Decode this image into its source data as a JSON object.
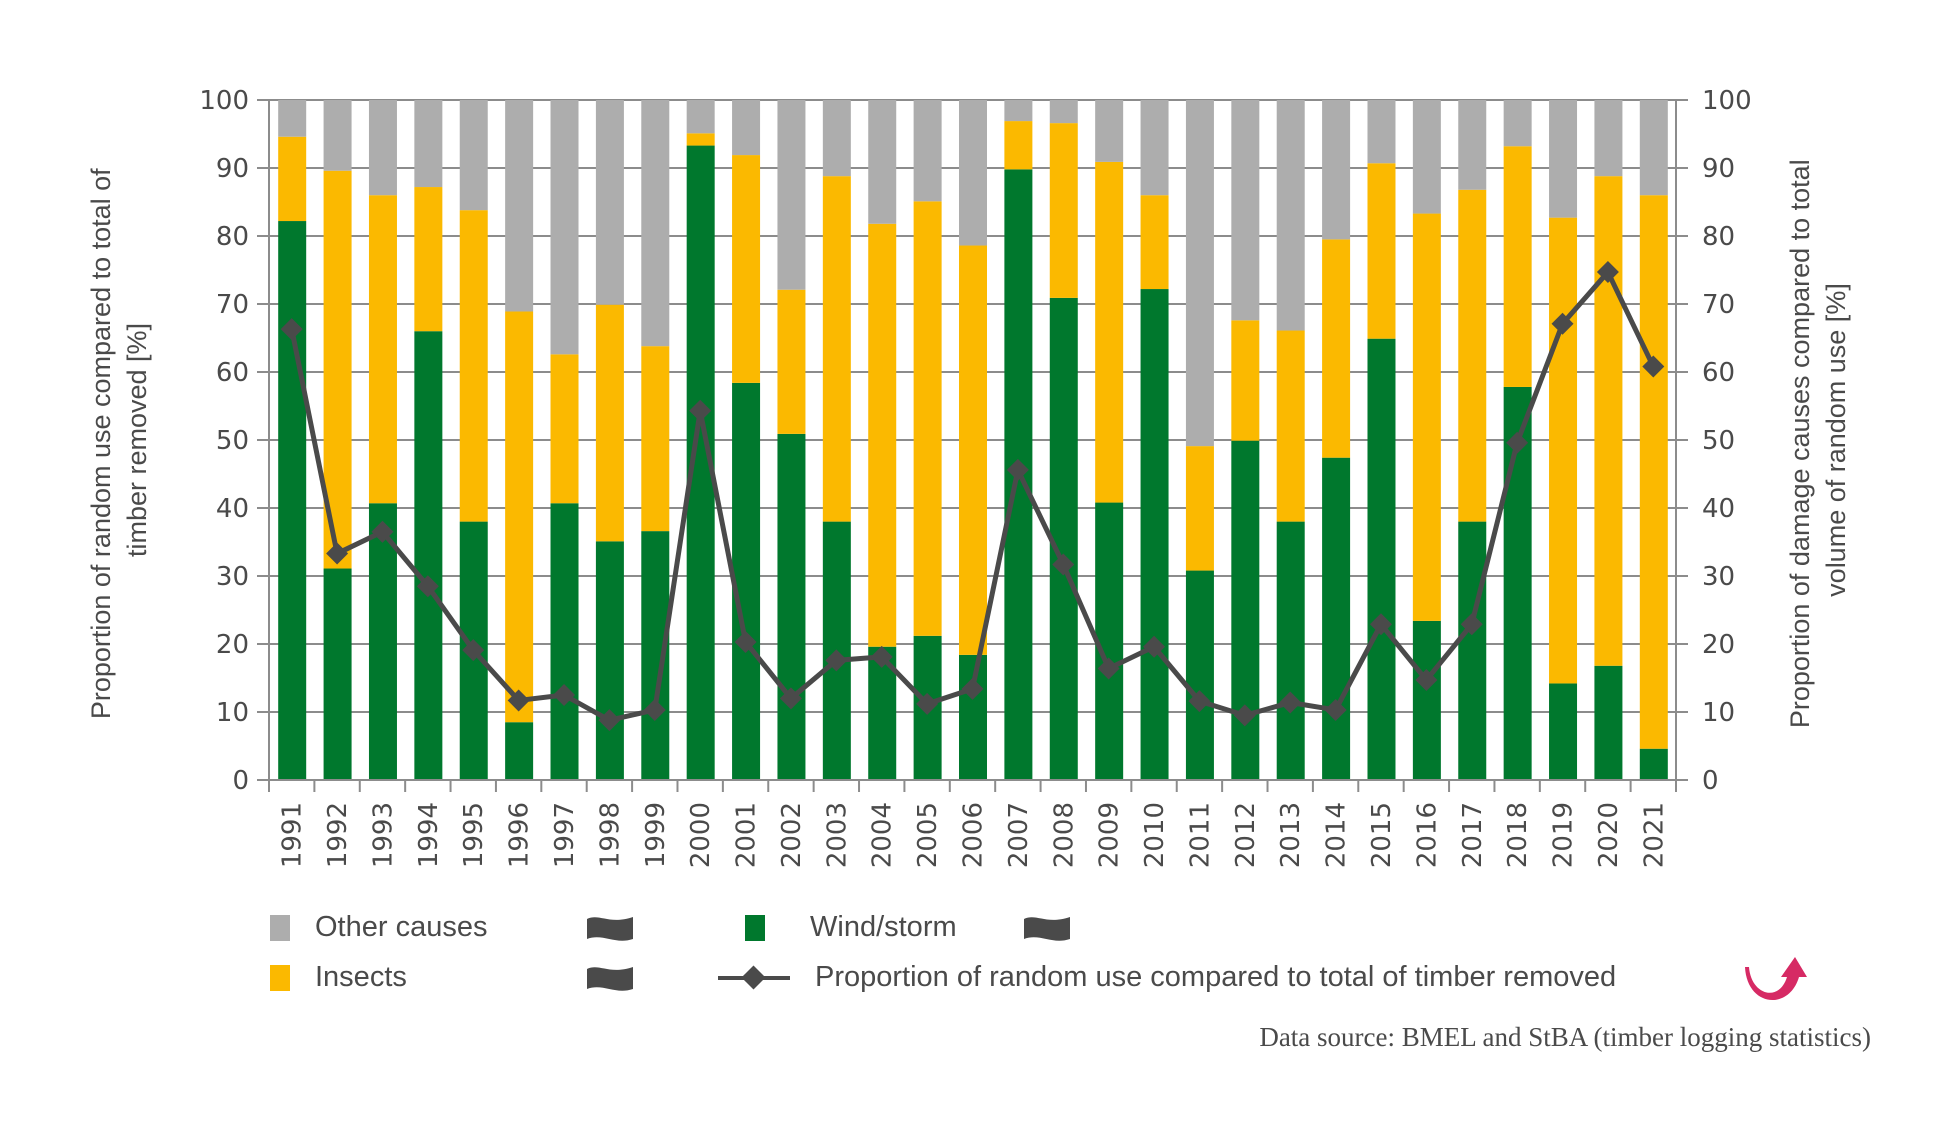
{
  "chart_data": {
    "type": "bar",
    "subtype": "stacked-bar-with-line-overlay",
    "categories": [
      "1991",
      "1992",
      "1993",
      "1994",
      "1995",
      "1996",
      "1997",
      "1998",
      "1999",
      "2000",
      "2001",
      "2002",
      "2003",
      "2004",
      "2005",
      "2006",
      "2007",
      "2008",
      "2009",
      "2010",
      "2011",
      "2012",
      "2013",
      "2014",
      "2015",
      "2016",
      "2017",
      "2018",
      "2019",
      "2020",
      "2021"
    ],
    "series": [
      {
        "name": "Wind/storm",
        "kind": "stacked-bar",
        "axis": "right",
        "color": "#00782D",
        "values": [
          82.2,
          31.1,
          40.7,
          66.0,
          38.0,
          8.5,
          40.7,
          35.1,
          36.6,
          93.3,
          58.4,
          50.9,
          38.0,
          19.6,
          21.2,
          18.4,
          89.8,
          70.9,
          40.8,
          72.2,
          30.8,
          49.9,
          38.0,
          47.4,
          64.9,
          23.4,
          38.0,
          57.8,
          14.2,
          16.8,
          4.6
        ]
      },
      {
        "name": "Insects",
        "kind": "stacked-bar",
        "axis": "right",
        "color": "#FBB900",
        "values": [
          12.4,
          58.5,
          45.3,
          21.2,
          45.8,
          60.4,
          21.9,
          34.8,
          27.2,
          1.8,
          33.5,
          21.2,
          50.8,
          62.2,
          63.9,
          60.2,
          7.1,
          25.7,
          50.1,
          13.8,
          18.3,
          17.7,
          28.1,
          32.1,
          25.8,
          59.9,
          48.8,
          35.4,
          68.5,
          72.0,
          81.4
        ]
      },
      {
        "name": "Other causes",
        "kind": "stacked-bar",
        "axis": "right",
        "color": "#ADADAD",
        "values": [
          5.4,
          10.4,
          14.0,
          12.8,
          16.2,
          31.1,
          37.4,
          30.1,
          36.2,
          4.9,
          8.1,
          27.9,
          11.2,
          18.2,
          14.9,
          21.4,
          3.1,
          3.4,
          9.1,
          14.0,
          50.9,
          32.4,
          33.9,
          20.5,
          9.3,
          16.7,
          13.2,
          6.8,
          17.3,
          11.2,
          14.0
        ]
      },
      {
        "name": "Proportion of random use compared to total of timber removed",
        "kind": "line",
        "axis": "left",
        "color": "#4A4A4A",
        "marker": "diamond",
        "values": [
          66.3,
          33.3,
          36.5,
          28.5,
          19.1,
          11.7,
          12.5,
          8.8,
          10.3,
          54.3,
          20.3,
          12.0,
          17.6,
          18.1,
          11.2,
          13.4,
          45.6,
          31.7,
          16.4,
          19.6,
          11.6,
          9.5,
          11.4,
          10.3,
          22.9,
          14.7,
          22.9,
          49.6,
          67.1,
          74.7,
          60.8
        ]
      }
    ],
    "title": "",
    "xlabel": "",
    "ylabel": "Proportion of random use compared to total of timber removed [%]",
    "ylabel_right": "Proportion of damage causes compared to total volume of random use [%]",
    "ylim": [
      0,
      100
    ],
    "ylim_right": [
      0,
      100
    ],
    "yticks": [
      0,
      10,
      20,
      30,
      40,
      50,
      60,
      70,
      80,
      90,
      100
    ],
    "grid": true,
    "legend_position": "bottom",
    "source": "Data source: BMEL and StBA (timber logging statistics)"
  },
  "legend": {
    "items": [
      {
        "label": "Other causes",
        "type": "swatch",
        "color": "#ADADAD"
      },
      {
        "label": "Insects",
        "type": "swatch",
        "color": "#FBB900"
      },
      {
        "label": "Wind/storm",
        "type": "swatch",
        "color": "#00782D"
      },
      {
        "label": "Proportion of random use compared to total of timber removed",
        "type": "line-diamond",
        "color": "#4A4A4A"
      }
    ],
    "trend_icons": [
      "wave-flag-icon",
      "wave-flag-icon",
      "wave-flag-icon"
    ],
    "trend_arrow_icon": "curved-up-arrow-icon",
    "trend_arrow_color": "#D62A64"
  },
  "axes": {
    "left_title_line1": "Proportion of random use compared to total of",
    "left_title_line2": "timber removed [%]",
    "right_title_line1": "Proportion of damage causes compared to total",
    "right_title_line2": "volume of random use [%]"
  },
  "colors": {
    "text": "#4A4A4A",
    "grid": "#8C8C8C",
    "axis": "#8C8C8C"
  }
}
